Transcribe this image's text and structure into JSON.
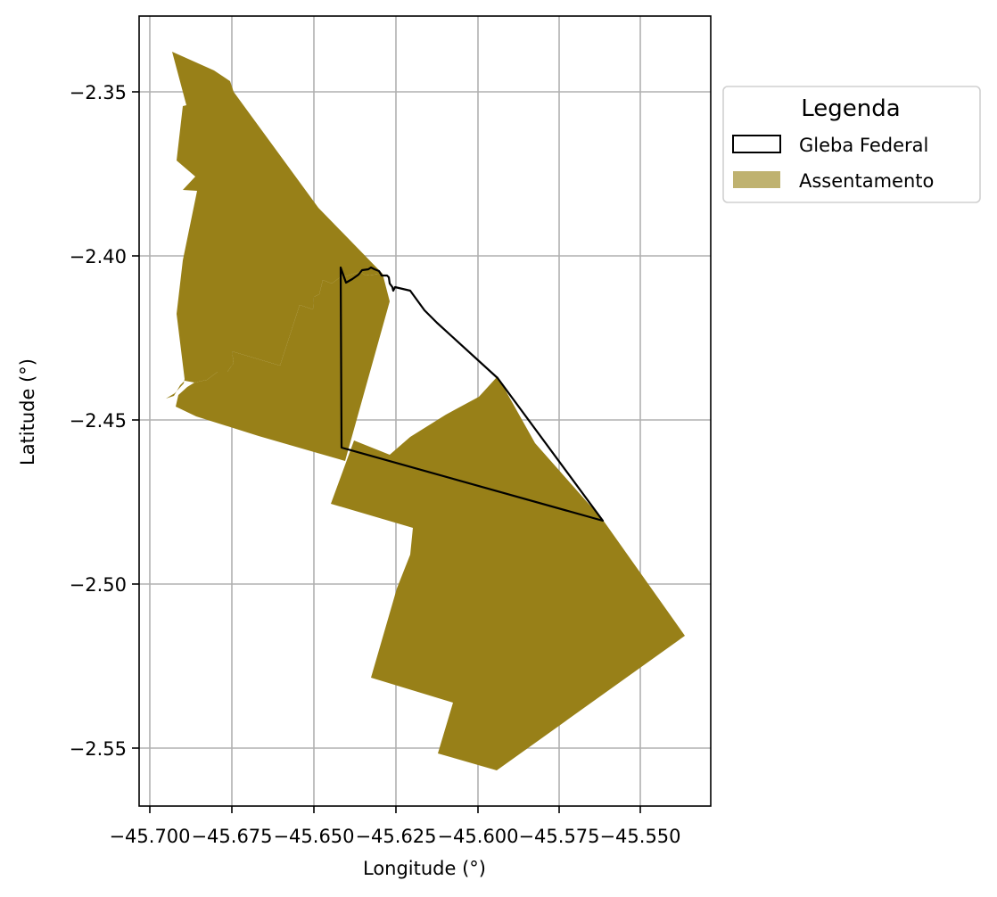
{
  "map": {
    "xlabel": "Longitude (°)",
    "ylabel": "Latitude (°)",
    "x_ticks": [
      "−45.700",
      "−45.675",
      "−45.650",
      "−45.625",
      "−45.600",
      "−45.575",
      "−45.550"
    ],
    "y_ticks": [
      "−2.35",
      "−2.40",
      "−2.45",
      "−2.50",
      "−2.55"
    ],
    "grid": true,
    "legend": {
      "title": "Legenda",
      "items": [
        {
          "label": "Gleba Federal",
          "style": "outline",
          "color": "#000000"
        },
        {
          "label": "Assentamento",
          "style": "fill",
          "color": "#bfb270"
        }
      ]
    },
    "colors": {
      "assentamento": "#988018",
      "gleba_outline": "#000000",
      "grid": "#b0b0b0"
    }
  }
}
